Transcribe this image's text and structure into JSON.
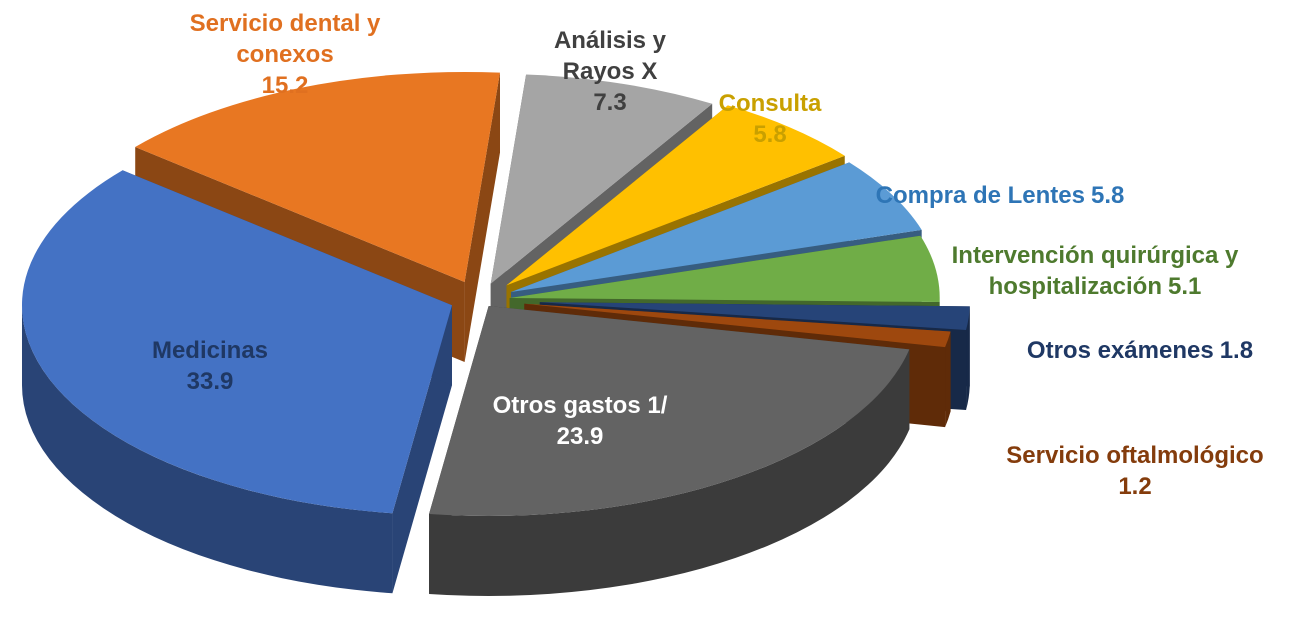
{
  "chart_data": {
    "type": "pie",
    "categories": [
      "Servicio dental y conexos",
      "Análisis y Rayos X",
      "Consulta",
      "Compra de Lentes",
      "Intervención quirúrgica y hospitalización",
      "Otros exámenes",
      "Servicio oftalmológico",
      "Otros gastos 1/",
      "Medicinas"
    ],
    "values": [
      15.2,
      7.3,
      5.8,
      5.8,
      5.1,
      1.8,
      1.2,
      23.9,
      33.9
    ],
    "colors": [
      "#E87722",
      "#A5A5A5",
      "#FFC000",
      "#5B9BD5",
      "#70AD47",
      "#264478",
      "#9E480E",
      "#636363",
      "#4472C4"
    ],
    "label_colors": [
      "#E07020",
      "#404040",
      "#C9A000",
      "#2E75B6",
      "#4E7A2E",
      "#1F3864",
      "#843C0C",
      "#FFFFFF",
      "#1F3864"
    ]
  }
}
